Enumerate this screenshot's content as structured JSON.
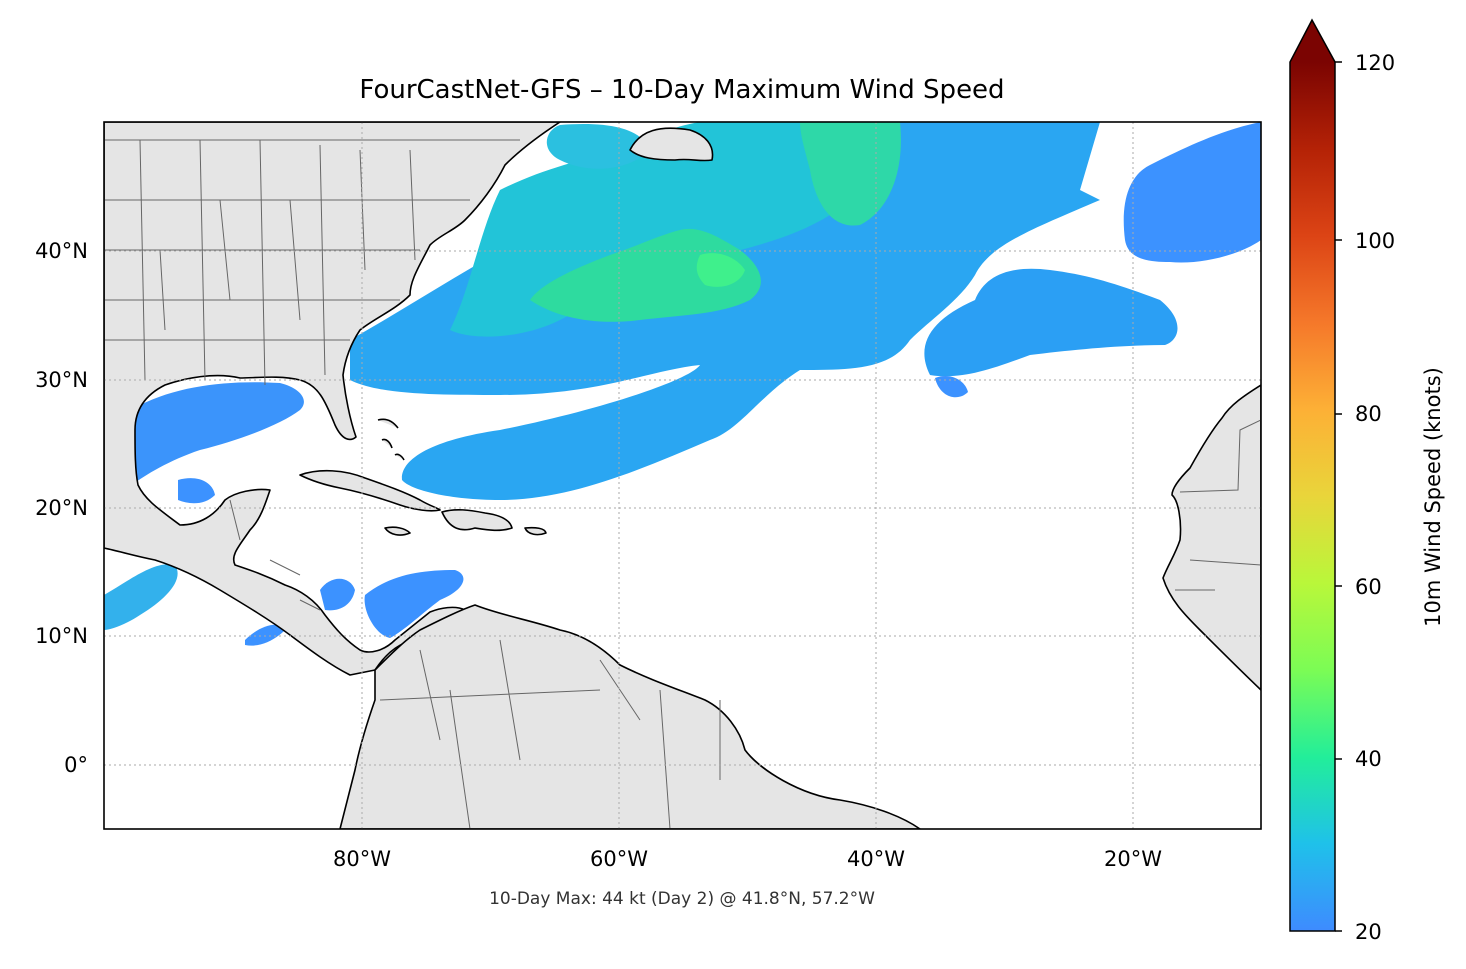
{
  "title": "FourCastNet-GFS – 10-Day Maximum Wind Speed",
  "caption": "10-Day Max: 44 kt (Day 2) @ 41.8°N, 57.2°W",
  "map": {
    "lon_range": [
      -100,
      -10
    ],
    "lat_range": [
      -5,
      50
    ],
    "grid": true,
    "lat_ticks": [
      "40°N",
      "30°N",
      "20°N",
      "10°N",
      "0°"
    ],
    "lon_ticks": [
      "80°W",
      "60°W",
      "40°W",
      "20°W"
    ],
    "land_color": "#e5e5e5",
    "coastline_color": "#000000",
    "border_color": "#666666"
  },
  "colorbar": {
    "label": "10m Wind Speed (knots)",
    "min": 20,
    "max": 120,
    "extend": "max",
    "colormap": "turbo",
    "ticks": [
      "20",
      "40",
      "60",
      "80",
      "100",
      "120"
    ]
  },
  "peak": {
    "value_kt": 44,
    "day": 2,
    "lat": 41.8,
    "lon": -57.2
  }
}
